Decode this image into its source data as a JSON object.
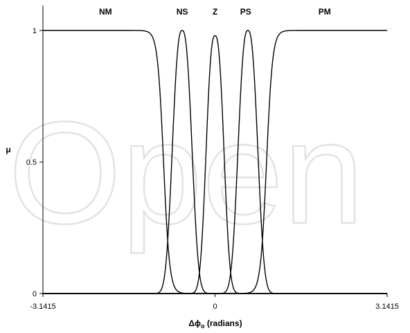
{
  "watermark": "Open",
  "chart_data": {
    "type": "line",
    "title": "",
    "xlabel": "Δϕ",
    "xlabel_sub": "o",
    "xlabel_suffix": " (radians)",
    "ylabel": "μ",
    "xlim": [
      -3.1415,
      3.1415
    ],
    "ylim": [
      0,
      1
    ],
    "x_ticks": [
      -3.1415,
      0,
      3.1415
    ],
    "x_tick_labels": [
      "-3.1415",
      "0",
      "3.1415"
    ],
    "y_ticks": [
      0,
      0.5,
      1
    ],
    "y_tick_labels": [
      "0",
      "0.5",
      "1"
    ],
    "grid": false,
    "legend": "none",
    "line_color": "#000000",
    "series": [
      {
        "name": "NM",
        "shape": "z",
        "mid": -0.94,
        "width": 0.055,
        "peak": 1
      },
      {
        "name": "NS",
        "shape": "bell",
        "center": -0.6,
        "spread": 0.22,
        "peak": 1
      },
      {
        "name": "Z",
        "shape": "bell",
        "center": 0,
        "spread": 0.2,
        "peak": 0.98
      },
      {
        "name": "PS",
        "shape": "bell",
        "center": 0.6,
        "spread": 0.22,
        "peak": 1
      },
      {
        "name": "PM",
        "shape": "s",
        "mid": 0.94,
        "width": 0.055,
        "peak": 1
      }
    ],
    "label_positions_x": [
      -2.0,
      -0.6,
      0,
      0.56,
      2.0
    ]
  }
}
